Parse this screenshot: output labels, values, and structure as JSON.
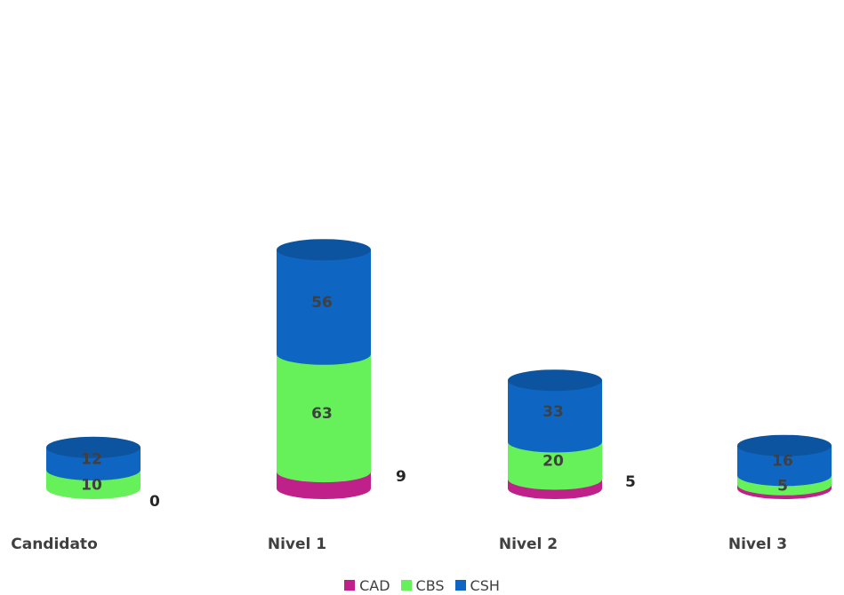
{
  "chart_data": {
    "type": "bar",
    "style": "3d-cylinder-stacked",
    "categories": [
      "Candidato",
      "Nivel 1",
      "Nivel 2",
      "Nivel 3"
    ],
    "series": [
      {
        "name": "CAD",
        "values": [
          0,
          9,
          5,
          2
        ],
        "color": "#c0208a",
        "label_position": "outside"
      },
      {
        "name": "CBS",
        "values": [
          10,
          63,
          20,
          5
        ],
        "color": "#66f05a",
        "label_position": "inside"
      },
      {
        "name": "CSH",
        "values": [
          12,
          56,
          33,
          16
        ],
        "color": "#0f66c2",
        "label_position": "inside"
      }
    ],
    "legend_position": "bottom",
    "grid": false,
    "axes_visible": false
  },
  "legend": {
    "items": [
      {
        "label": "CAD",
        "color": "#c0208a"
      },
      {
        "label": "CBS",
        "color": "#66f05a"
      },
      {
        "label": "CSH",
        "color": "#0f66c2"
      }
    ]
  }
}
